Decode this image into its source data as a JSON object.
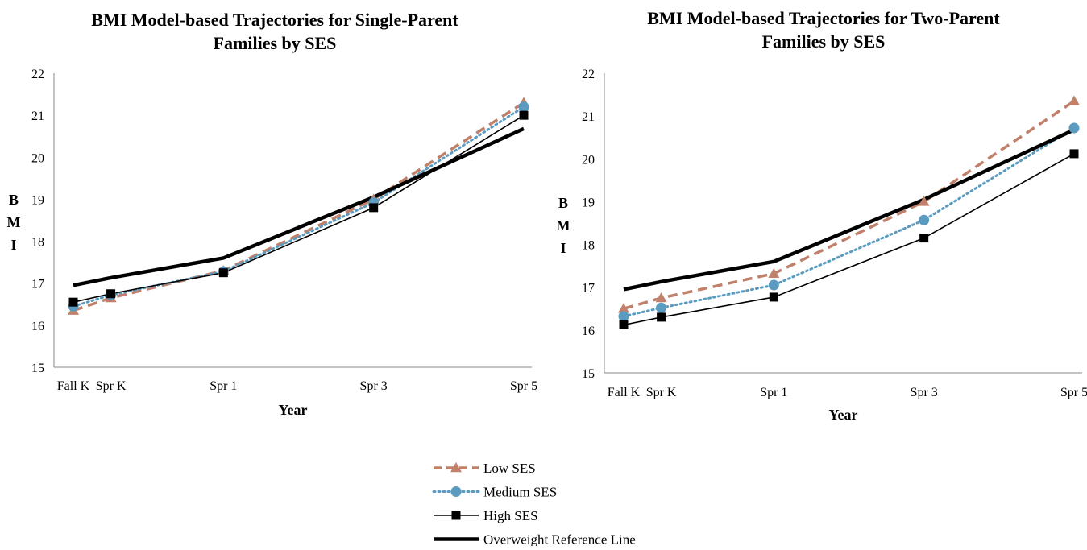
{
  "chart_data": [
    {
      "type": "line",
      "title": "BMI Model-based Trajectories for Single-Parent Families by SES",
      "title_lines": [
        "BMI Model-based Trajectories for Single-Parent",
        "Families by SES"
      ],
      "xlabel": "Year",
      "ylabel_letters": [
        "B",
        "M",
        "I"
      ],
      "x": [
        "Fall K",
        "Spr K",
        "Spr 1",
        "Spr 3",
        "Spr 5"
      ],
      "x_positions": [
        0,
        0.5,
        2,
        4,
        6
      ],
      "ylim": [
        15,
        22
      ],
      "yticks": [
        "15",
        "16",
        "17",
        "18",
        "19",
        "20",
        "21",
        "22"
      ],
      "grid": false,
      "series": [
        {
          "name": "Low SES",
          "values": [
            16.35,
            16.65,
            17.3,
            19.0,
            21.3
          ]
        },
        {
          "name": "Medium SES",
          "values": [
            16.45,
            16.72,
            17.28,
            18.92,
            21.2
          ]
        },
        {
          "name": "High SES",
          "values": [
            16.55,
            16.75,
            17.25,
            18.8,
            21.0
          ]
        },
        {
          "name": "Overweight Reference Line",
          "values": [
            16.95,
            17.13,
            17.6,
            19.05,
            20.68
          ]
        }
      ]
    },
    {
      "type": "line",
      "title": "BMI Model-based Trajectories for Two-Parent Families by SES",
      "title_lines": [
        "BMI Model-based Trajectories for Two-Parent",
        "Families by SES"
      ],
      "xlabel": "Year",
      "ylabel_letters": [
        "B",
        "M",
        "I"
      ],
      "x": [
        "Fall K",
        "Spr K",
        "Spr 1",
        "Spr 3",
        "Spr 5"
      ],
      "x_positions": [
        0,
        0.5,
        2,
        4,
        6
      ],
      "ylim": [
        15,
        22
      ],
      "yticks": [
        "15",
        "16",
        "17",
        "18",
        "19",
        "20",
        "21",
        "22"
      ],
      "grid": false,
      "series": [
        {
          "name": "Low SES",
          "values": [
            16.5,
            16.75,
            17.32,
            19.0,
            21.35
          ]
        },
        {
          "name": "Medium SES",
          "values": [
            16.32,
            16.52,
            17.05,
            18.57,
            20.72
          ]
        },
        {
          "name": "High SES",
          "values": [
            16.12,
            16.3,
            16.77,
            18.15,
            20.12
          ]
        },
        {
          "name": "Overweight Reference Line",
          "values": [
            16.95,
            17.13,
            17.6,
            19.05,
            20.68
          ]
        }
      ]
    }
  ],
  "legend": {
    "placement": "bottom-center",
    "items": [
      {
        "label": "Low SES",
        "color": "#c0806a",
        "dash": "dashed",
        "marker": "triangle"
      },
      {
        "label": "Medium SES",
        "color": "#5b9bbf",
        "dash": "dotted",
        "marker": "circle"
      },
      {
        "label": "High SES",
        "color": "#000000",
        "dash": "solid",
        "marker": "square"
      },
      {
        "label": "Overweight Reference Line",
        "color": "#000000",
        "dash": "thick",
        "marker": "none"
      }
    ]
  }
}
